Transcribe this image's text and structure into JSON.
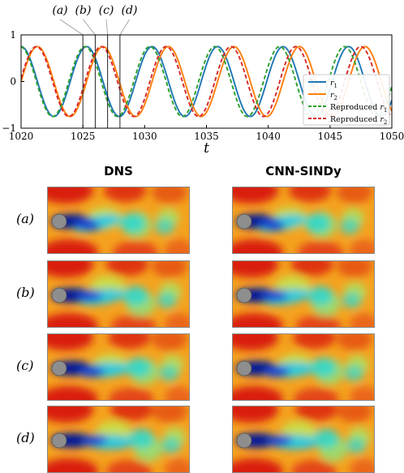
{
  "chart_data": [
    {
      "type": "line",
      "xlabel": "t",
      "xlim": [
        1020,
        1050
      ],
      "ylim": [
        -1,
        1
      ],
      "x_ticks": [
        "1020",
        "1025",
        "1030",
        "1035",
        "1040",
        "1045",
        "1050"
      ],
      "y_ticks": [
        "1",
        "0",
        "−1"
      ],
      "legend_position": "right",
      "series": [
        {
          "name": "r_1",
          "style": "solid",
          "color": "#1f77b4",
          "amplitude": 0.75,
          "period": 5.3,
          "phase_deg": 90,
          "x": [
            1020,
            1022,
            1024,
            1026,
            1028,
            1030,
            1032,
            1034,
            1036,
            1038,
            1040,
            1042,
            1044,
            1046,
            1048,
            1050
          ],
          "y": [
            0.6,
            -0.3,
            -0.75,
            -0.05,
            0.7,
            0.4,
            -0.55,
            -0.65,
            0.25,
            0.75,
            0.1,
            -0.7,
            -0.45,
            0.5,
            0.65,
            -0.25
          ]
        },
        {
          "name": "r_2",
          "style": "solid",
          "color": "#ff7f0e",
          "amplitude": 0.75,
          "period": 5.3,
          "phase_deg": 0,
          "x": [
            1020,
            1022,
            1024,
            1026,
            1028,
            1030,
            1032,
            1034,
            1036,
            1038,
            1040,
            1042,
            1044,
            1046,
            1048,
            1050
          ],
          "y": [
            -0.45,
            -0.65,
            0.3,
            0.7,
            -0.15,
            -0.7,
            0.05,
            0.75,
            0.15,
            -0.7,
            -0.35,
            0.55,
            0.55,
            -0.35,
            -0.7,
            0.1
          ]
        },
        {
          "name": "Reproduced r_1",
          "style": "dashed",
          "color": "#2ca02c",
          "amplitude": 0.75,
          "period": 5.25,
          "phase_deg": 95,
          "x": [
            1020,
            1025,
            1030,
            1035,
            1040,
            1045,
            1050
          ],
          "y": [
            0.55,
            -0.2,
            0.45,
            -0.65,
            0.2,
            0.4,
            -0.45
          ]
        },
        {
          "name": "Reproduced r_2",
          "style": "dashed",
          "color": "#d62728",
          "amplitude": 0.75,
          "period": 5.25,
          "phase_deg": 5,
          "x": [
            1020,
            1025,
            1030,
            1035,
            1040,
            1045,
            1050
          ],
          "y": [
            -0.4,
            0.65,
            -0.65,
            0.7,
            -0.4,
            0.1,
            0.3
          ]
        }
      ],
      "markers": [
        {
          "label": "(a)",
          "x": 1025
        },
        {
          "label": "(b)",
          "x": 1026
        },
        {
          "label": "(c)",
          "x": 1027
        },
        {
          "label": "(d)",
          "x": 1028
        }
      ]
    },
    {
      "type": "heatmap",
      "columns": [
        "DNS",
        "CNN-SINDy"
      ],
      "rows": [
        "(a)",
        "(b)",
        "(c)",
        "(d)"
      ],
      "colormap": "jet"
    }
  ]
}
